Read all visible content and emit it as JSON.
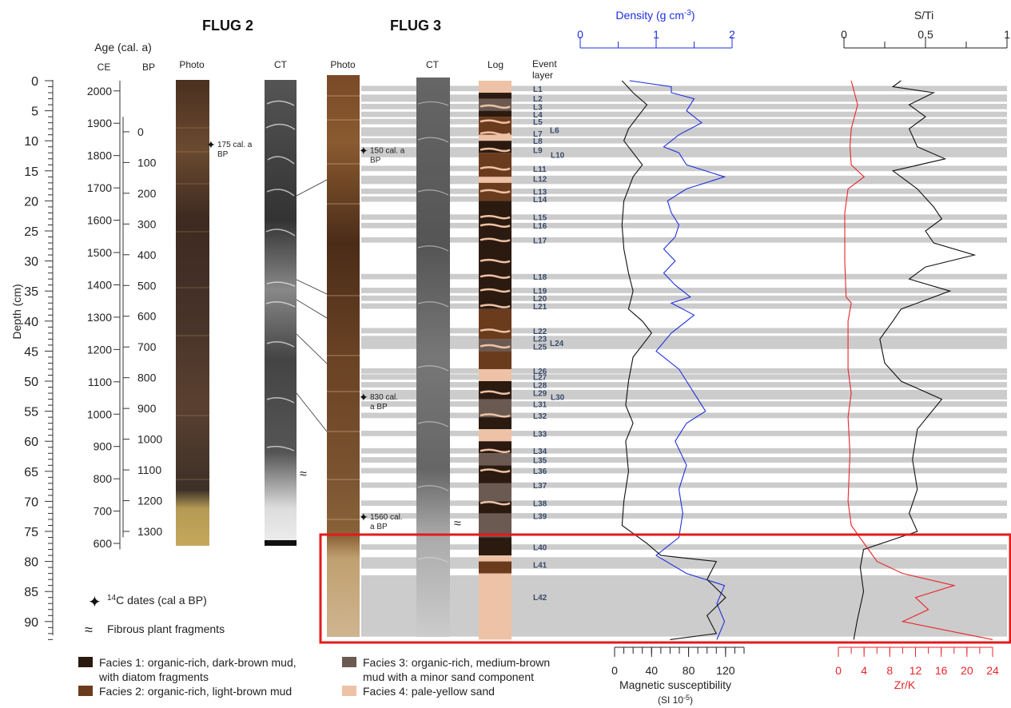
{
  "titles": {
    "flug2": "FLUG 2",
    "flug3": "FLUG 3"
  },
  "age_axis": {
    "title": "Age (cal. a)",
    "ce_label": "CE",
    "bp_label": "BP",
    "ce_ticks": [
      "2000",
      "1900",
      "1800",
      "1700",
      "1600",
      "1500",
      "1400",
      "1300",
      "1200",
      "1100",
      "1000",
      "900",
      "800",
      "700",
      "600"
    ],
    "bp_ticks": [
      "0",
      "100",
      "200",
      "300",
      "400",
      "500",
      "600",
      "700",
      "800",
      "900",
      "1000",
      "1100",
      "1200",
      "1300"
    ]
  },
  "depth_axis": {
    "label": "Depth (cm)",
    "ticks": [
      "0",
      "5",
      "10",
      "15",
      "20",
      "25",
      "30",
      "35",
      "40",
      "45",
      "50",
      "55",
      "60",
      "65",
      "70",
      "75",
      "80",
      "85",
      "90"
    ],
    "range": [
      0,
      93
    ]
  },
  "column_labels": {
    "photo": "Photo",
    "ct": "CT",
    "log": "Log",
    "event1": "Event",
    "event2": "layer"
  },
  "c14_dates": [
    {
      "core": "FLUG 2",
      "line1": "175 cal. a",
      "line2": "BP",
      "depth": 10.5
    },
    {
      "core": "FLUG 3",
      "line1": "150 cal. a",
      "line2": "BP",
      "depth": 11.5
    },
    {
      "core": "FLUG 3",
      "line1": "830 cal.",
      "line2": "a BP",
      "depth": 52.5
    },
    {
      "core": "FLUG 3",
      "line1": "1560 cal.",
      "line2": "a BP",
      "depth": 72.5
    }
  ],
  "event_layers": [
    {
      "label": "L1",
      "depth": 1.3
    },
    {
      "label": "L2",
      "depth": 2.9
    },
    {
      "label": "L3",
      "depth": 4.3
    },
    {
      "label": "L4",
      "depth": 5.6
    },
    {
      "label": "L5",
      "depth": 6.8
    },
    {
      "label": "L6",
      "depth": 8.2
    },
    {
      "label": "L7",
      "depth": 8.8
    },
    {
      "label": "L8",
      "depth": 10.0
    },
    {
      "label": "L9",
      "depth": 11.5
    },
    {
      "label": "L10",
      "depth": 12.3
    },
    {
      "label": "L11",
      "depth": 14.6
    },
    {
      "label": "L12",
      "depth": 16.3
    },
    {
      "label": "L13",
      "depth": 18.4
    },
    {
      "label": "L14",
      "depth": 19.7
    },
    {
      "label": "L15",
      "depth": 22.7
    },
    {
      "label": "L16",
      "depth": 24.1
    },
    {
      "label": "L17",
      "depth": 26.5
    },
    {
      "label": "L18",
      "depth": 32.6
    },
    {
      "label": "L19",
      "depth": 34.9
    },
    {
      "label": "L20",
      "depth": 36.2
    },
    {
      "label": "L21",
      "depth": 37.5
    },
    {
      "label": "L22",
      "depth": 41.6
    },
    {
      "label": "L23",
      "depth": 42.9
    },
    {
      "label": "L24",
      "depth": 43.6
    },
    {
      "label": "L25",
      "depth": 44.2
    },
    {
      "label": "L26",
      "depth": 48.3
    },
    {
      "label": "L27",
      "depth": 49.3
    },
    {
      "label": "L28",
      "depth": 50.6
    },
    {
      "label": "L29",
      "depth": 51.9
    },
    {
      "label": "L30",
      "depth": 52.6
    },
    {
      "label": "L31",
      "depth": 53.8
    },
    {
      "label": "L32",
      "depth": 55.7
    },
    {
      "label": "L33",
      "depth": 58.7
    },
    {
      "label": "L34",
      "depth": 61.6
    },
    {
      "label": "L35",
      "depth": 63.1
    },
    {
      "label": "L36",
      "depth": 64.9
    },
    {
      "label": "L37",
      "depth": 67.3
    },
    {
      "label": "L38",
      "depth": 70.3
    },
    {
      "label": "L39",
      "depth": 72.4
    },
    {
      "label": "L40",
      "depth": 77.6
    },
    {
      "label": "L41",
      "depth": 80.5
    },
    {
      "label": "L42",
      "depth": 85.9
    }
  ],
  "density_axis": {
    "label_main": "Density (g cm",
    "label_sup": "-3",
    "label_end": ")",
    "ticks": [
      "0",
      "1",
      "2"
    ],
    "range": [
      0,
      2
    ]
  },
  "sti_axis": {
    "label": "S/Ti",
    "ticks": [
      "0",
      "0.5",
      "1"
    ],
    "range": [
      0,
      1
    ]
  },
  "magsus_axis": {
    "label": "Magnetic susceptibility",
    "unit_main": "(SI 10",
    "unit_sup": "-5",
    "unit_end": ")",
    "ticks": [
      "0",
      "40",
      "80",
      "120"
    ],
    "range": [
      0,
      140
    ]
  },
  "zrk_axis": {
    "label": "Zr/K",
    "ticks": [
      "0",
      "4",
      "8",
      "12",
      "16",
      "20",
      "24"
    ],
    "range": [
      0,
      24
    ]
  },
  "legend": {
    "c14_sup": "14",
    "c14_text": "C dates (cal a BP)",
    "fibrous": "Fibrous plant fragments",
    "facies": [
      {
        "line1": "Facies 1: organic-rich, dark-brown mud,",
        "line2": "with diatom fragments",
        "color": "#2b1a10"
      },
      {
        "line1": "Facies 2: organic-rich, light-brown mud",
        "line2": "",
        "color": "#6b3b1e"
      },
      {
        "line1": "Facies 3: organic-rich, medium-brown",
        "line2": "mud with a minor sand component",
        "color": "#6a5a52"
      },
      {
        "line1": "Facies 4: pale-yellow sand",
        "line2": "",
        "color": "#eec2a6"
      }
    ]
  },
  "colors": {
    "density": "#1f2fe0",
    "zrk": "#e8262a",
    "highlight": "#e31b1b",
    "band": "#cccccc",
    "magsus": "#111111",
    "sti": "#111111"
  },
  "chart_data": [
    {
      "type": "line",
      "title": "Density (g cm-3)",
      "xlabel": "Density (g cm-3)",
      "ylabel": "Depth (cm)",
      "xlim": [
        0,
        2
      ],
      "ylim": [
        0,
        93
      ],
      "series": [
        {
          "name": "Density",
          "points": [
            [
              0.65,
              0
            ],
            [
              1.2,
              1
            ],
            [
              1.2,
              2
            ],
            [
              1.5,
              3
            ],
            [
              1.4,
              5
            ],
            [
              1.6,
              7
            ],
            [
              1.3,
              9
            ],
            [
              1.1,
              11
            ],
            [
              1.3,
              12
            ],
            [
              1.4,
              14
            ],
            [
              1.9,
              16
            ],
            [
              1.4,
              18
            ],
            [
              1.15,
              20
            ],
            [
              1.2,
              22
            ],
            [
              1.3,
              24
            ],
            [
              1.25,
              26
            ],
            [
              1.1,
              28
            ],
            [
              1.25,
              30
            ],
            [
              1.1,
              32
            ],
            [
              1.25,
              34
            ],
            [
              1.45,
              36
            ],
            [
              1.2,
              37
            ],
            [
              1.5,
              39
            ],
            [
              1.2,
              42
            ],
            [
              1.0,
              45
            ],
            [
              1.3,
              48
            ],
            [
              1.4,
              50
            ],
            [
              1.55,
              53
            ],
            [
              1.65,
              55
            ],
            [
              1.4,
              57
            ],
            [
              1.25,
              60
            ],
            [
              1.4,
              64
            ],
            [
              1.3,
              68
            ],
            [
              1.35,
              72
            ],
            [
              1.3,
              76
            ],
            [
              1.0,
              79
            ],
            [
              1.4,
              82
            ],
            [
              1.9,
              84
            ],
            [
              1.8,
              87
            ],
            [
              1.9,
              90
            ],
            [
              1.8,
              93
            ]
          ]
        }
      ]
    },
    {
      "type": "line",
      "title": "S/Ti",
      "xlabel": "S/Ti",
      "ylabel": "Depth (cm)",
      "xlim": [
        0,
        1
      ],
      "ylim": [
        0,
        93
      ],
      "series": [
        {
          "name": "S/Ti",
          "points": [
            [
              0.35,
              0
            ],
            [
              0.3,
              1
            ],
            [
              0.55,
              2
            ],
            [
              0.4,
              4
            ],
            [
              0.5,
              6
            ],
            [
              0.4,
              8
            ],
            [
              0.45,
              11
            ],
            [
              0.62,
              13
            ],
            [
              0.3,
              15
            ],
            [
              0.45,
              18
            ],
            [
              0.55,
              21
            ],
            [
              0.6,
              23
            ],
            [
              0.5,
              25
            ],
            [
              0.55,
              27
            ],
            [
              0.8,
              29
            ],
            [
              0.5,
              31
            ],
            [
              0.4,
              33
            ],
            [
              0.65,
              35
            ],
            [
              0.35,
              38
            ],
            [
              0.3,
              40
            ],
            [
              0.22,
              43
            ],
            [
              0.25,
              47
            ],
            [
              0.35,
              50
            ],
            [
              0.6,
              53
            ],
            [
              0.45,
              58
            ],
            [
              0.42,
              63
            ],
            [
              0.45,
              68
            ],
            [
              0.4,
              72
            ],
            [
              0.45,
              75
            ],
            [
              0.12,
              78
            ],
            [
              0.1,
              81
            ],
            [
              0.12,
              85
            ],
            [
              0.08,
              90
            ],
            [
              0.06,
              93
            ]
          ]
        }
      ]
    },
    {
      "type": "line",
      "title": "Magnetic susceptibility",
      "xlabel": "Magnetic susceptibility (SI 10-5)",
      "ylabel": "Depth (cm)",
      "xlim": [
        0,
        140
      ],
      "ylim": [
        0,
        93
      ],
      "series": [
        {
          "name": "Magnetic susceptibility",
          "points": [
            [
              8,
              0
            ],
            [
              20,
              2
            ],
            [
              35,
              4
            ],
            [
              25,
              6
            ],
            [
              15,
              8
            ],
            [
              10,
              10
            ],
            [
              20,
              12
            ],
            [
              30,
              14
            ],
            [
              20,
              16
            ],
            [
              15,
              18
            ],
            [
              10,
              20
            ],
            [
              8,
              24
            ],
            [
              10,
              28
            ],
            [
              15,
              32
            ],
            [
              20,
              35
            ],
            [
              15,
              38
            ],
            [
              30,
              40
            ],
            [
              40,
              42
            ],
            [
              30,
              44
            ],
            [
              20,
              46
            ],
            [
              15,
              50
            ],
            [
              12,
              54
            ],
            [
              20,
              57
            ],
            [
              12,
              60
            ],
            [
              15,
              65
            ],
            [
              10,
              70
            ],
            [
              8,
              74
            ],
            [
              35,
              77
            ],
            [
              50,
              79
            ],
            [
              110,
              80
            ],
            [
              100,
              83
            ],
            [
              120,
              86
            ],
            [
              100,
              89
            ],
            [
              110,
              92
            ],
            [
              60,
              93
            ]
          ]
        }
      ]
    },
    {
      "type": "line",
      "title": "Zr/K",
      "xlabel": "Zr/K",
      "ylabel": "Depth (cm)",
      "xlim": [
        0,
        24
      ],
      "ylim": [
        0,
        93
      ],
      "series": [
        {
          "name": "Zr/K",
          "points": [
            [
              2,
              0
            ],
            [
              2.5,
              2
            ],
            [
              3,
              4
            ],
            [
              2.5,
              6
            ],
            [
              2,
              8
            ],
            [
              1.8,
              11
            ],
            [
              2,
              14
            ],
            [
              4,
              16
            ],
            [
              1.5,
              18
            ],
            [
              1,
              22
            ],
            [
              1,
              30
            ],
            [
              1.2,
              36
            ],
            [
              2,
              37
            ],
            [
              1.5,
              40
            ],
            [
              1.5,
              48
            ],
            [
              2,
              52
            ],
            [
              1.5,
              56
            ],
            [
              1.8,
              62
            ],
            [
              1.5,
              70
            ],
            [
              2,
              74
            ],
            [
              4,
              77
            ],
            [
              6,
              80
            ],
            [
              10,
              82
            ],
            [
              18,
              84
            ],
            [
              12,
              86
            ],
            [
              14,
              88
            ],
            [
              10,
              90
            ],
            [
              24,
              93
            ]
          ]
        }
      ]
    }
  ]
}
